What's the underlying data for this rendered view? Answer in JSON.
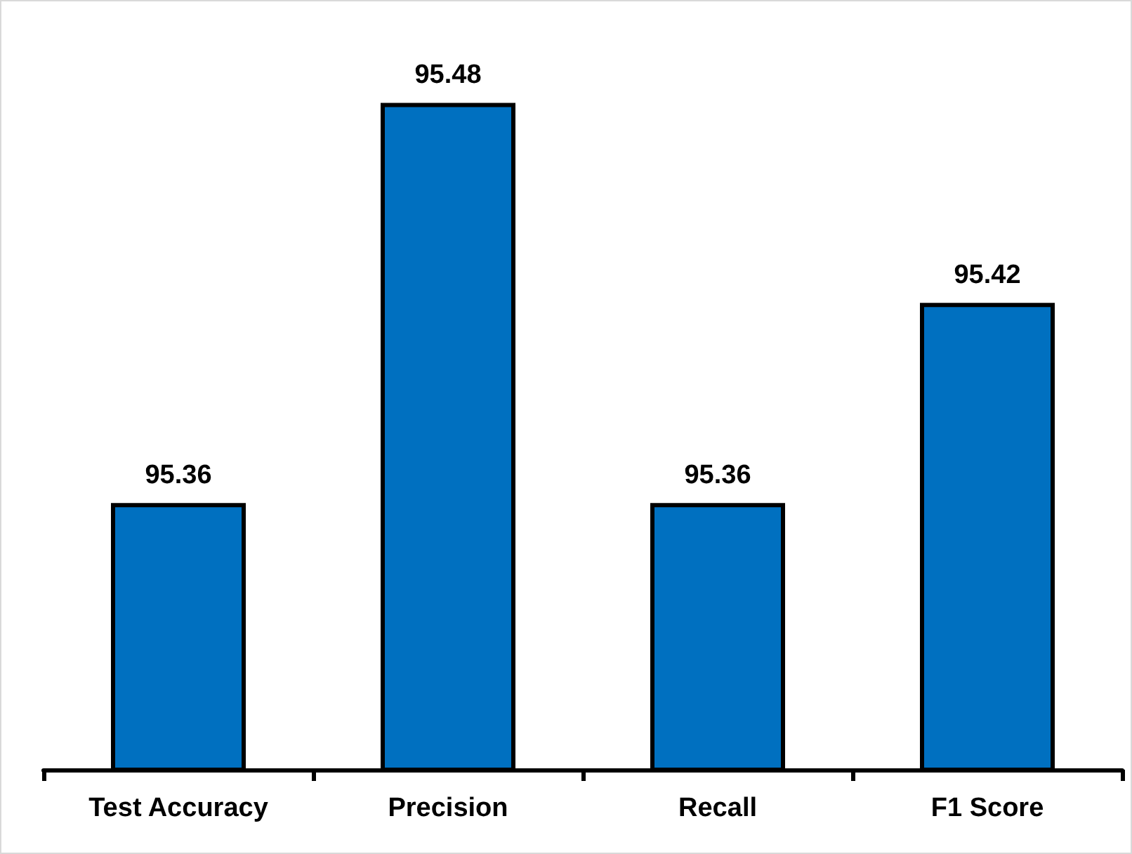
{
  "chart_data": {
    "type": "bar",
    "categories": [
      "Test Accuracy",
      "Precision",
      "Recall",
      "F1 Score"
    ],
    "values": [
      95.36,
      95.48,
      95.36,
      95.42
    ],
    "color": "#0070c0",
    "ylim": [
      95.28,
      95.51
    ],
    "tick_labels": "x",
    "data_labels": true
  }
}
